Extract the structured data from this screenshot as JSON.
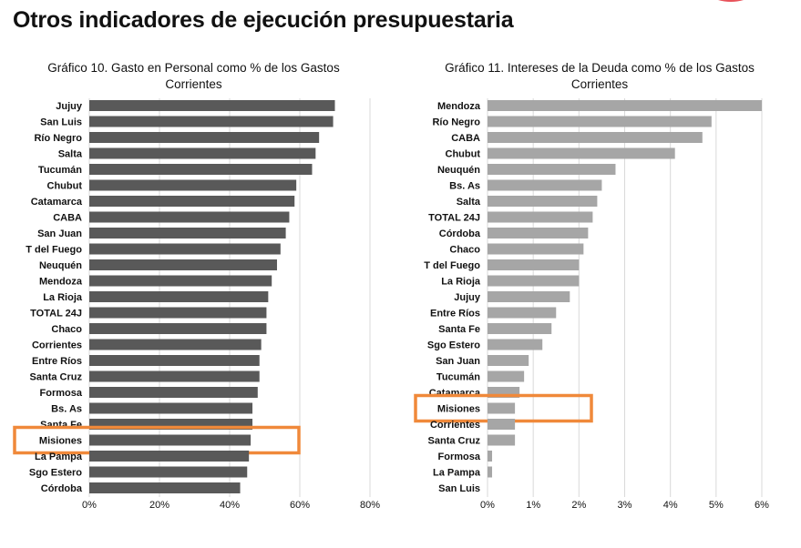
{
  "page": {
    "title": "Otros indicadores de ejecución presupuestaria"
  },
  "chart_data": [
    {
      "type": "bar",
      "orientation": "horizontal",
      "title": "Gráfico 10. Gasto en Personal como % de los Gastos Corrientes",
      "categories": [
        "Jujuy",
        "San Luis",
        "Río Negro",
        "Salta",
        "Tucumán",
        "Chubut",
        "Catamarca",
        "CABA",
        "San Juan",
        "T del Fuego",
        "Neuquén",
        "Mendoza",
        "La Rioja",
        "TOTAL 24J",
        "Chaco",
        "Corrientes",
        "Entre Ríos",
        "Santa Cruz",
        "Formosa",
        "Bs. As",
        "Santa Fe",
        "Misiones",
        "La Pampa",
        "Sgo Estero",
        "Córdoba"
      ],
      "values": [
        70,
        69.5,
        65.5,
        64.5,
        63.5,
        59,
        58.5,
        57,
        56,
        54.5,
        53.5,
        52,
        51,
        50.5,
        50.5,
        49,
        48.5,
        48.5,
        48,
        46.5,
        46.5,
        46,
        45.5,
        45,
        43
      ],
      "xlim": [
        0,
        80
      ],
      "xticks": [
        0,
        20,
        40,
        60,
        80
      ],
      "tick_labels": [
        "0%",
        "20%",
        "40%",
        "60%",
        "80%"
      ],
      "bar_color": "#595959",
      "highlight_category": "Misiones",
      "highlight_color": "#f0893a",
      "grid": true
    },
    {
      "type": "bar",
      "orientation": "horizontal",
      "title": "Gráfico 11. Intereses de la Deuda como % de los Gastos Corrientes",
      "categories": [
        "Mendoza",
        "Río Negro",
        "CABA",
        "Chubut",
        "Neuquén",
        "Bs. As",
        "Salta",
        "TOTAL 24J",
        "Córdoba",
        "Chaco",
        "T del Fuego",
        "La Rioja",
        "Jujuy",
        "Entre Ríos",
        "Santa Fe",
        "Sgo Estero",
        "San Juan",
        "Tucumán",
        "Catamarca",
        "Misiones",
        "Corrientes",
        "Santa Cruz",
        "Formosa",
        "La Pampa",
        "San Luis"
      ],
      "values": [
        6,
        4.9,
        4.7,
        4.1,
        2.8,
        2.5,
        2.4,
        2.3,
        2.2,
        2.1,
        2.0,
        2.0,
        1.8,
        1.5,
        1.4,
        1.2,
        0.9,
        0.8,
        0.7,
        0.6,
        0.6,
        0.6,
        0.1,
        0.1,
        0
      ],
      "xlim": [
        0,
        6
      ],
      "xticks": [
        0,
        1,
        2,
        3,
        4,
        5,
        6
      ],
      "tick_labels": [
        "0%",
        "1%",
        "2%",
        "3%",
        "4%",
        "5%",
        "6%"
      ],
      "bar_color": "#a6a6a6",
      "highlight_category": "Misiones",
      "highlight_color": "#f0893a",
      "grid": true
    }
  ]
}
